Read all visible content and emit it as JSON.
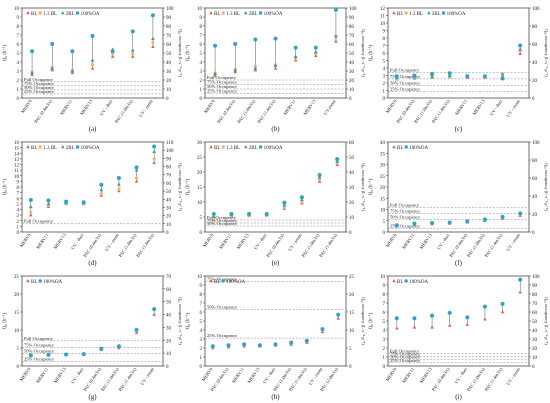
{
  "figure": {
    "background": "#ffffff",
    "colors": {
      "BL": "#e8595b",
      "1.3 BL": "#f2b277",
      "2BL": "#3a9a8a",
      "100%OA": "#2fa3c9",
      "range_line": "#555555",
      "occupancy_line": "#888888",
      "axis": "#333333"
    }
  },
  "chart_data": [
    {
      "panel": "(a)",
      "type": "scatter",
      "ylabel": "Q₀ (h⁻¹)",
      "y2label": "Q₀, occupancy (L·s⁻¹·p⁻¹)",
      "ylim": [
        0,
        10
      ],
      "yticks": [
        0,
        1,
        2,
        3,
        4,
        5,
        6,
        7,
        8,
        9,
        10
      ],
      "y2lim": [
        0,
        100
      ],
      "y2ticks": [
        0,
        10,
        20,
        30,
        40,
        50,
        60,
        70,
        80,
        90,
        100
      ],
      "legend": [
        "BL",
        "1.3 BL",
        "2BL",
        "100%OA"
      ],
      "categories": [
        "MERV9",
        "PAC (0.4m3/s)",
        "MERV11",
        "MERV13",
        "UV - duct",
        "PAC (1.0m3/s)",
        "UV - room"
      ],
      "series": [
        {
          "name": "BL",
          "values": [
            2.6,
            3.1,
            2.8,
            3.3,
            4.6,
            4.6,
            5.7
          ]
        },
        {
          "name": "1.3 BL",
          "values": [
            2.9,
            3.4,
            3.1,
            3.7,
            4.9,
            4.9,
            6.2
          ]
        },
        {
          "name": "2BL",
          "values": [
            2.8,
            3.3,
            3.0,
            4.2,
            5.4,
            5.3,
            6.6
          ]
        },
        {
          "name": "100%OA",
          "values": [
            5.2,
            6.0,
            5.2,
            6.9,
            5.2,
            7.4,
            9.2
          ]
        }
      ],
      "occupancy_lines": [
        {
          "label": "Full Occupancy",
          "y": 1.8
        },
        {
          "label": "75% Occupancy",
          "y": 1.35
        },
        {
          "label": "50% Occupancy",
          "y": 0.9
        },
        {
          "label": "25% Occupancy",
          "y": 0.45
        }
      ],
      "xlabel": ""
    },
    {
      "panel": "(b)",
      "type": "scatter",
      "ylabel": "Q₀ (h⁻¹)",
      "y2label": "Q₀, occupancy (L·s⁻¹·p⁻¹)",
      "ylim": [
        0,
        10
      ],
      "yticks": [
        0,
        1,
        2,
        3,
        4,
        5,
        6,
        7,
        8,
        9,
        10
      ],
      "y2lim": [
        0,
        100
      ],
      "y2ticks": [
        0,
        10,
        20,
        30,
        40,
        50,
        60,
        70,
        80,
        90,
        100
      ],
      "legend": [
        "BL",
        "1.3 BL",
        "2BL",
        "100%OA"
      ],
      "categories": [
        "MERV9",
        "PAC (0.4m3/s)",
        "PAC (1.0m3/s)",
        "PAC (1.4m3/s)",
        "MERV11",
        "MERV13",
        "UV-room"
      ],
      "series": [
        {
          "name": "BL",
          "values": [
            2.5,
            2.9,
            3.1,
            3.3,
            4.2,
            4.7,
            6.3
          ]
        },
        {
          "name": "1.3 BL",
          "values": [
            2.8,
            3.2,
            3.5,
            3.7,
            4.5,
            5.0,
            6.7
          ]
        },
        {
          "name": "2BL",
          "values": [
            2.7,
            3.1,
            3.3,
            3.6,
            4.6,
            5.1,
            6.9
          ]
        },
        {
          "name": "100%OA",
          "values": [
            5.8,
            6.0,
            6.5,
            6.6,
            5.6,
            5.6,
            9.8
          ]
        }
      ],
      "occupancy_lines": [
        {
          "label": "Full Occupancy",
          "y": 2.0
        },
        {
          "label": "75% Occupancy",
          "y": 1.5
        },
        {
          "label": "50% Occupancy",
          "y": 1.0
        },
        {
          "label": "25% Occupancy",
          "y": 0.5
        }
      ],
      "xlabel": ""
    },
    {
      "panel": "(c)",
      "type": "scatter",
      "ylabel": "Q₀ (h⁻¹)",
      "y2label": "Q₀, occupancy (L·s⁻¹·p⁻¹)",
      "ylim": [
        0,
        12
      ],
      "yticks": [
        0,
        1,
        2,
        3,
        4,
        5,
        6,
        7,
        8,
        9,
        10,
        11,
        12
      ],
      "y2lim": [
        0,
        100
      ],
      "y2ticks": [
        0,
        20,
        40,
        60,
        80,
        100
      ],
      "legend": [
        "BL",
        "1.3 BL",
        "2BL",
        "100%OA"
      ],
      "categories": [
        "MERV9",
        "PAC (0.4m3/s)",
        "PAC (1.0m3/s)",
        "PAC (1.4m3/s)",
        "MERV11",
        "MERV13",
        "UV - duct",
        "UV - room"
      ],
      "series": [
        {
          "name": "BL",
          "values": [
            2.5,
            2.6,
            2.7,
            2.8,
            2.7,
            2.7,
            3.0,
            5.9
          ]
        },
        {
          "name": "1.3 BL",
          "values": [
            2.6,
            2.7,
            2.8,
            2.9,
            2.8,
            2.8,
            3.1,
            6.3
          ]
        },
        {
          "name": "2BL",
          "values": [
            2.7,
            2.8,
            2.9,
            3.0,
            2.9,
            2.9,
            3.2,
            6.5
          ]
        },
        {
          "name": "100%OA",
          "values": [
            2.9,
            3.0,
            3.2,
            3.3,
            2.9,
            2.9,
            2.6,
            7.0
          ]
        }
      ],
      "occupancy_lines": [
        {
          "label": "Full Occupancy",
          "y": 3.4
        },
        {
          "label": "75% Occupancy",
          "y": 2.55
        },
        {
          "label": "50% Occupancy",
          "y": 1.7
        },
        {
          "label": "25% Occupancy",
          "y": 0.85
        }
      ],
      "xlabel": ""
    },
    {
      "panel": "(d)",
      "type": "scatter",
      "ylabel": "Q₀ (h⁻¹)",
      "y2label": "Q₀, occupancy (L·s⁻¹·p⁻¹)",
      "ylim": [
        0,
        16
      ],
      "yticks": [
        0,
        1,
        2,
        3,
        4,
        5,
        6,
        7,
        8,
        9,
        10,
        11,
        12,
        13,
        14,
        15,
        16
      ],
      "y2lim": [
        0,
        110
      ],
      "y2ticks": [
        0,
        10,
        20,
        30,
        40,
        50,
        60,
        70,
        80,
        90,
        100,
        110
      ],
      "legend": [
        "BL",
        "1.3 BL",
        "2BL",
        "100%OA"
      ],
      "categories": [
        "MERV9",
        "MERV11",
        "MERV13",
        "UV - duct",
        "PAC (0.4m3/s)",
        "UV - room",
        "PAC (1.0m3/s)",
        "PAC (1.4m3/s)"
      ],
      "series": [
        {
          "name": "BL",
          "values": [
            3.0,
            4.5,
            5.0,
            5.0,
            6.5,
            7.3,
            9.0,
            12.3
          ]
        },
        {
          "name": "1.3 BL",
          "values": [
            3.5,
            4.7,
            5.1,
            5.1,
            6.8,
            7.6,
            9.6,
            13.0
          ]
        },
        {
          "name": "2BL",
          "values": [
            4.5,
            5.0,
            5.2,
            5.2,
            7.5,
            8.5,
            11.0,
            14.3
          ]
        },
        {
          "name": "100%OA",
          "values": [
            5.7,
            5.6,
            5.4,
            5.3,
            8.4,
            9.6,
            11.5,
            15.2
          ]
        }
      ],
      "occupancy_lines": [
        {
          "label": "Full Occupancy",
          "y": 1.5
        }
      ],
      "xlabel": ""
    },
    {
      "panel": "(e)",
      "type": "scatter",
      "ylabel": "Q₀ (h⁻¹)",
      "y2label": "Q₀, occupancy (L·s⁻¹·p⁻¹)",
      "ylim": [
        0,
        30
      ],
      "yticks": [
        0,
        5,
        10,
        15,
        20,
        25,
        30
      ],
      "y2lim": [
        0,
        60
      ],
      "y2ticks": [
        0,
        10,
        20,
        30,
        40,
        50,
        60
      ],
      "legend": [
        "BL",
        "1.3 BL",
        "2BL",
        "100%OA"
      ],
      "categories": [
        "MERV9",
        "MERV11",
        "MERV13",
        "UV - duct",
        "PAC (0.4m3/s)",
        "UV - room",
        "PAC (1.0m3/s)",
        "PAC (1.4m3/s)"
      ],
      "series": [
        {
          "name": "BL",
          "values": [
            4.2,
            5.3,
            5.4,
            5.5,
            7.8,
            9.6,
            16.8,
            22.4
          ]
        },
        {
          "name": "1.3 BL",
          "values": [
            4.6,
            5.5,
            5.6,
            5.6,
            8.3,
            10.1,
            17.5,
            23.0
          ]
        },
        {
          "name": "2BL",
          "values": [
            5.2,
            5.8,
            5.8,
            5.8,
            9.0,
            10.8,
            18.3,
            23.6
          ]
        },
        {
          "name": "100%OA",
          "values": [
            6.0,
            6.0,
            6.0,
            6.0,
            9.8,
            11.6,
            19.0,
            24.3
          ]
        }
      ],
      "occupancy_lines": [
        {
          "label": "Full Occupancy",
          "y": 4.0
        },
        {
          "label": "75% Occupancy",
          "y": 3.0
        },
        {
          "label": "50% Occupancy",
          "y": 2.0
        }
      ],
      "xlabel": ""
    },
    {
      "panel": "(f)",
      "type": "scatter",
      "ylabel": "Q₀ (h⁻¹)",
      "y2label": "Q₀, occupancy (L·s⁻¹·p⁻¹)",
      "ylim": [
        0,
        40
      ],
      "yticks": [
        0,
        5,
        10,
        15,
        20,
        25,
        30,
        35,
        40
      ],
      "y2lim": [
        0,
        100
      ],
      "y2ticks": [
        0,
        20,
        40,
        60,
        80,
        100
      ],
      "legend": [
        "BL",
        "100%OA"
      ],
      "categories": [
        "MERV9",
        "MERV11",
        "MERV13",
        "UV - duct",
        "PAC (0.4m3/s)",
        "PAC (1.0m3/s)",
        "PAC (1.4m3/s)",
        "UV - room"
      ],
      "series": [
        {
          "name": "BL",
          "values": [
            2.5,
            3.5,
            3.6,
            3.8,
            4.3,
            5.0,
            6.0,
            7.3
          ]
        },
        {
          "name": "100%OA",
          "values": [
            3.0,
            3.8,
            4.0,
            4.2,
            4.8,
            5.6,
            6.7,
            8.3
          ]
        }
      ],
      "occupancy_lines": [
        {
          "label": "Full Occupancy",
          "y": 11.0
        },
        {
          "label": "75% Occupancy",
          "y": 8.3
        },
        {
          "label": "50% Occupancy",
          "y": 5.5
        },
        {
          "label": "25% Occupancy",
          "y": 1.5
        }
      ],
      "xlabel": ""
    },
    {
      "panel": "(g)",
      "type": "scatter",
      "ylabel": "Q₀ (h⁻¹)",
      "y2label": "Q₀, occupancy (L·s⁻¹·p⁻¹)",
      "ylim": [
        0,
        25
      ],
      "yticks": [
        0,
        5,
        10,
        15,
        20,
        25
      ],
      "y2lim": [
        0,
        70
      ],
      "y2ticks": [
        0,
        10,
        20,
        30,
        40,
        50,
        60,
        70
      ],
      "legend": [
        "BL",
        "100%OA"
      ],
      "categories": [
        "MERV9",
        "MERV11",
        "MERV13",
        "UV - duct",
        "PAC (0.4m3/s)",
        "PAC (1.0m3/s)",
        "PAC (1.4m3/s)",
        "UV - room"
      ],
      "series": [
        {
          "name": "BL",
          "values": [
            2.8,
            3.0,
            3.1,
            3.2,
            4.5,
            5.0,
            9.3,
            14.3
          ]
        },
        {
          "name": "100%OA",
          "values": [
            3.0,
            3.1,
            3.2,
            3.3,
            4.8,
            5.5,
            10.0,
            15.8
          ]
        }
      ],
      "occupancy_lines": [
        {
          "label": "Full Occupancy",
          "y": 7.0
        },
        {
          "label": "75% Occupancy",
          "y": 5.2
        },
        {
          "label": "50% Occupancy",
          "y": 3.5
        },
        {
          "label": "25% Occupancy",
          "y": 1.2
        }
      ],
      "xlabel": ""
    },
    {
      "panel": "(h)",
      "type": "scatter",
      "ylabel": "Q₀ (h⁻¹)",
      "y2label": "Q₀, occupancy (L·s⁻¹·p⁻¹)",
      "ylim": [
        0,
        10
      ],
      "yticks": [
        0,
        1,
        2,
        3,
        4,
        5,
        6,
        7,
        8,
        9,
        10
      ],
      "y2lim": [
        0,
        25
      ],
      "y2ticks": [
        0,
        5,
        10,
        15,
        20,
        25
      ],
      "legend": [
        "BL",
        "100%OA"
      ],
      "categories": [
        "MERV9",
        "PAC (0.4m3/s)",
        "MERV11",
        "MERV13",
        "UV - duct",
        "PAC (1.0m3/s)",
        "PAC (1.4m3/s)",
        "UV - room",
        "PAC (2.0m3/s)"
      ],
      "series": [
        {
          "name": "BL",
          "values": [
            2.0,
            2.1,
            2.2,
            2.2,
            2.3,
            2.4,
            2.6,
            3.8,
            5.3
          ]
        },
        {
          "name": "100%OA",
          "values": [
            2.2,
            2.3,
            2.4,
            2.3,
            2.4,
            2.6,
            2.8,
            4.1,
            5.7
          ]
        }
      ],
      "occupancy_lines": [
        {
          "label": "75% Occupancy",
          "y": 9.4
        },
        {
          "label": "50% Occupancy",
          "y": 6.3
        },
        {
          "label": "25% Occupancy",
          "y": 3.1
        }
      ],
      "xlabel": ""
    },
    {
      "panel": "(i)",
      "type": "scatter",
      "ylabel": "Q₀ (h⁻¹)",
      "y2label": "Q₀, occupancy (L·s⁻¹·p⁻¹)",
      "ylim": [
        0,
        10
      ],
      "yticks": [
        0,
        1,
        2,
        3,
        4,
        5,
        6,
        7,
        8,
        9,
        10
      ],
      "y2lim": [
        0,
        100
      ],
      "y2ticks": [
        0,
        10,
        20,
        30,
        40,
        50,
        60,
        70,
        80,
        90,
        100
      ],
      "legend": [
        "BL",
        "100%OA"
      ],
      "categories": [
        "MERV9",
        "MERV11",
        "MERV13",
        "PAC (0.4m3/s)",
        "UV - duct",
        "PAC (1.0m3/s)",
        "PAC (1.4m3/s)",
        "UV - room"
      ],
      "series": [
        {
          "name": "BL",
          "values": [
            4.2,
            4.3,
            4.3,
            4.5,
            4.6,
            5.2,
            6.0,
            8.2
          ]
        },
        {
          "name": "100%OA",
          "values": [
            5.3,
            5.3,
            5.6,
            5.9,
            5.4,
            6.6,
            6.9,
            9.6
          ]
        }
      ],
      "occupancy_lines": [
        {
          "label": "Full Occupancy",
          "y": 1.4
        },
        {
          "label": "75% Occupancy",
          "y": 1.05
        },
        {
          "label": "50% Occupancy",
          "y": 0.7
        },
        {
          "label": "25% Occupancy",
          "y": 0.35
        }
      ],
      "xlabel": ""
    }
  ]
}
